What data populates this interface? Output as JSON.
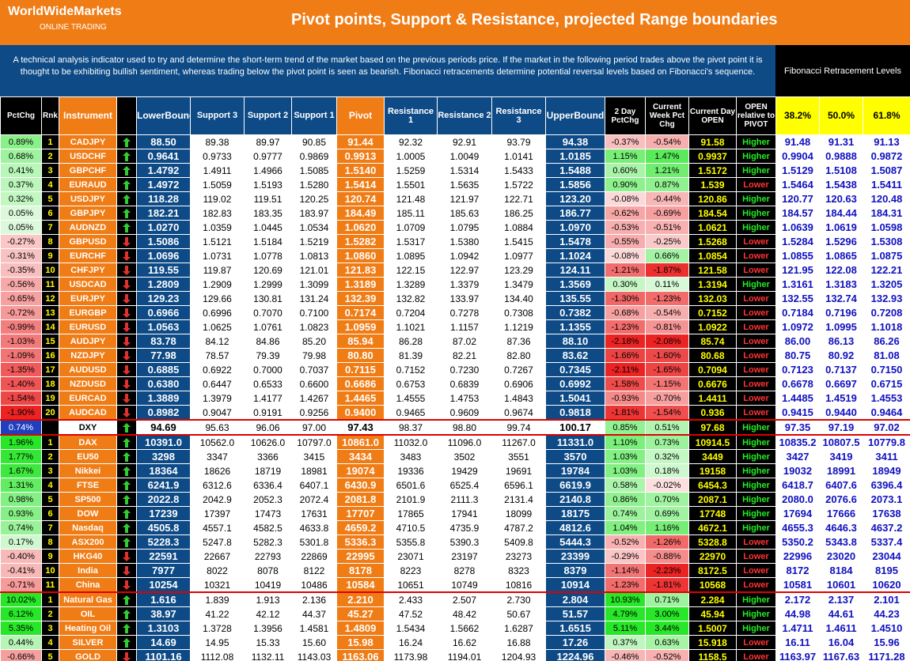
{
  "header": {
    "brand": "WorldWideMarkets",
    "sub": "ONLINE TRADING",
    "title": "Pivot points, Support & Resistance, projected Range boundaries",
    "description": "A technical analysis indicator used to try and determine the short-term trend of the market based on the previous periods price.  If the market in the following period trades above the pivot point it is thought to be exhibiting bullish sentiment, whereas trading below the pivot point is seen as bearish.  Fibonacci retracements determine potential reversal levels based on Fibonacci's sequence.",
    "fib_title": "Fibonacci Retracement Levels"
  },
  "table": {
    "columns": [
      "PctChg",
      "Rnk",
      "Instrument",
      "LowerBound",
      "Support 3",
      "Support 2",
      "Support 1",
      "Pivot",
      "Resistance 1",
      "Resistance 2",
      "Resistance 3",
      "UpperBound",
      "2 Day PctChg",
      "Current Week Pct Chg",
      "Current Day OPEN",
      "OPEN relative to PIVOT",
      "38.2%",
      "50.0%",
      "61.8%"
    ],
    "groups": [
      {
        "rows": [
          [
            "0.89%",
            "1",
            "CADJPY",
            "88.50",
            "89.38",
            "89.97",
            "90.85",
            "91.44",
            "92.32",
            "92.91",
            "93.79",
            "94.38",
            "-0.37%",
            "-0.54%",
            "91.58",
            "Higher",
            "91.48",
            "91.31",
            "91.13"
          ],
          [
            "0.68%",
            "2",
            "USDCHF",
            "0.9641",
            "0.9733",
            "0.9777",
            "0.9869",
            "0.9913",
            "1.0005",
            "1.0049",
            "1.0141",
            "1.0185",
            "1.15%",
            "1.47%",
            "0.9937",
            "Higher",
            "0.9904",
            "0.9888",
            "0.9872"
          ],
          [
            "0.41%",
            "3",
            "GBPCHF",
            "1.4792",
            "1.4911",
            "1.4966",
            "1.5085",
            "1.5140",
            "1.5259",
            "1.5314",
            "1.5433",
            "1.5488",
            "0.60%",
            "1.21%",
            "1.5172",
            "Higher",
            "1.5129",
            "1.5108",
            "1.5087"
          ],
          [
            "0.37%",
            "4",
            "EURAUD",
            "1.4972",
            "1.5059",
            "1.5193",
            "1.5280",
            "1.5414",
            "1.5501",
            "1.5635",
            "1.5722",
            "1.5856",
            "0.90%",
            "0.87%",
            "1.539",
            "Lower",
            "1.5464",
            "1.5438",
            "1.5411"
          ],
          [
            "0.32%",
            "5",
            "USDJPY",
            "118.28",
            "119.02",
            "119.51",
            "120.25",
            "120.74",
            "121.48",
            "121.97",
            "122.71",
            "123.20",
            "-0.08%",
            "-0.44%",
            "120.86",
            "Higher",
            "120.77",
            "120.63",
            "120.48"
          ],
          [
            "0.05%",
            "6",
            "GBPJPY",
            "182.21",
            "182.83",
            "183.35",
            "183.97",
            "184.49",
            "185.11",
            "185.63",
            "186.25",
            "186.77",
            "-0.62%",
            "-0.69%",
            "184.54",
            "Higher",
            "184.57",
            "184.44",
            "184.31"
          ],
          [
            "0.05%",
            "7",
            "AUDNZD",
            "1.0270",
            "1.0359",
            "1.0445",
            "1.0534",
            "1.0620",
            "1.0709",
            "1.0795",
            "1.0884",
            "1.0970",
            "-0.53%",
            "-0.51%",
            "1.0621",
            "Higher",
            "1.0639",
            "1.0619",
            "1.0598"
          ],
          [
            "-0.27%",
            "8",
            "GBPUSD",
            "1.5086",
            "1.5121",
            "1.5184",
            "1.5219",
            "1.5282",
            "1.5317",
            "1.5380",
            "1.5415",
            "1.5478",
            "-0.55%",
            "-0.25%",
            "1.5268",
            "Lower",
            "1.5284",
            "1.5296",
            "1.5308"
          ],
          [
            "-0.31%",
            "9",
            "EURCHF",
            "1.0696",
            "1.0731",
            "1.0778",
            "1.0813",
            "1.0860",
            "1.0895",
            "1.0942",
            "1.0977",
            "1.1024",
            "-0.08%",
            "0.66%",
            "1.0854",
            "Lower",
            "1.0855",
            "1.0865",
            "1.0875"
          ],
          [
            "-0.35%",
            "10",
            "CHFJPY",
            "119.55",
            "119.87",
            "120.69",
            "121.01",
            "121.83",
            "122.15",
            "122.97",
            "123.29",
            "124.11",
            "-1.21%",
            "-1.87%",
            "121.58",
            "Lower",
            "121.95",
            "122.08",
            "122.21"
          ],
          [
            "-0.56%",
            "11",
            "USDCAD",
            "1.2809",
            "1.2909",
            "1.2999",
            "1.3099",
            "1.3189",
            "1.3289",
            "1.3379",
            "1.3479",
            "1.3569",
            "0.30%",
            "0.11%",
            "1.3194",
            "Higher",
            "1.3161",
            "1.3183",
            "1.3205"
          ],
          [
            "-0.65%",
            "12",
            "EURJPY",
            "129.23",
            "129.66",
            "130.81",
            "131.24",
            "132.39",
            "132.82",
            "133.97",
            "134.40",
            "135.55",
            "-1.30%",
            "-1.23%",
            "132.03",
            "Lower",
            "132.55",
            "132.74",
            "132.93"
          ],
          [
            "-0.72%",
            "13",
            "EURGBP",
            "0.6966",
            "0.6996",
            "0.7070",
            "0.7100",
            "0.7174",
            "0.7204",
            "0.7278",
            "0.7308",
            "0.7382",
            "-0.68%",
            "-0.54%",
            "0.7152",
            "Lower",
            "0.7184",
            "0.7196",
            "0.7208"
          ],
          [
            "-0.99%",
            "14",
            "EURUSD",
            "1.0563",
            "1.0625",
            "1.0761",
            "1.0823",
            "1.0959",
            "1.1021",
            "1.1157",
            "1.1219",
            "1.1355",
            "-1.23%",
            "-0.81%",
            "1.0922",
            "Lower",
            "1.0972",
            "1.0995",
            "1.1018"
          ],
          [
            "-1.03%",
            "15",
            "AUDJPY",
            "83.78",
            "84.12",
            "84.86",
            "85.20",
            "85.94",
            "86.28",
            "87.02",
            "87.36",
            "88.10",
            "-2.18%",
            "-2.08%",
            "85.74",
            "Lower",
            "86.00",
            "86.13",
            "86.26"
          ],
          [
            "-1.09%",
            "16",
            "NZDJPY",
            "77.98",
            "78.57",
            "79.39",
            "79.98",
            "80.80",
            "81.39",
            "82.21",
            "82.80",
            "83.62",
            "-1.66%",
            "-1.60%",
            "80.68",
            "Lower",
            "80.75",
            "80.92",
            "81.08"
          ],
          [
            "-1.35%",
            "17",
            "AUDUSD",
            "0.6885",
            "0.6922",
            "0.7000",
            "0.7037",
            "0.7115",
            "0.7152",
            "0.7230",
            "0.7267",
            "0.7345",
            "-2.11%",
            "-1.65%",
            "0.7094",
            "Lower",
            "0.7123",
            "0.7137",
            "0.7150"
          ],
          [
            "-1.40%",
            "18",
            "NZDUSD",
            "0.6380",
            "0.6447",
            "0.6533",
            "0.6600",
            "0.6686",
            "0.6753",
            "0.6839",
            "0.6906",
            "0.6992",
            "-1.58%",
            "-1.15%",
            "0.6676",
            "Lower",
            "0.6678",
            "0.6697",
            "0.6715"
          ],
          [
            "-1.54%",
            "19",
            "EURCAD",
            "1.3889",
            "1.3979",
            "1.4177",
            "1.4267",
            "1.4465",
            "1.4555",
            "1.4753",
            "1.4843",
            "1.5041",
            "-0.93%",
            "-0.70%",
            "1.4411",
            "Lower",
            "1.4485",
            "1.4519",
            "1.4553"
          ],
          [
            "-1.90%",
            "20",
            "AUDCAD",
            "0.8982",
            "0.9047",
            "0.9191",
            "0.9256",
            "0.9400",
            "0.9465",
            "0.9609",
            "0.9674",
            "0.9818",
            "-1.81%",
            "-1.54%",
            "0.936",
            "Lower",
            "0.9415",
            "0.9440",
            "0.9464"
          ]
        ]
      },
      {
        "rows": [
          [
            "0.74%",
            null,
            "DXY",
            "94.69",
            "95.63",
            "96.06",
            "97.00",
            "97.43",
            "98.37",
            "98.80",
            "99.74",
            "100.17",
            "0.85%",
            "0.51%",
            "97.68",
            "Higher",
            "97.35",
            "97.19",
            "97.02"
          ]
        ]
      },
      {
        "rows": [
          [
            "1.96%",
            "1",
            "DAX",
            "10391.0",
            "10562.0",
            "10626.0",
            "10797.0",
            "10861.0",
            "11032.0",
            "11096.0",
            "11267.0",
            "11331.0",
            "1.10%",
            "0.73%",
            "10914.5",
            "Higher",
            "10835.2",
            "10807.5",
            "10779.8"
          ],
          [
            "1.77%",
            "2",
            "EU50",
            "3298",
            "3347",
            "3366",
            "3415",
            "3434",
            "3483",
            "3502",
            "3551",
            "3570",
            "1.03%",
            "0.32%",
            "3449",
            "Higher",
            "3427",
            "3419",
            "3411"
          ],
          [
            "1.67%",
            "3",
            "Nikkei",
            "18364",
            "18626",
            "18719",
            "18981",
            "19074",
            "19336",
            "19429",
            "19691",
            "19784",
            "1.03%",
            "0.18%",
            "19158",
            "Higher",
            "19032",
            "18991",
            "18949"
          ],
          [
            "1.31%",
            "4",
            "FTSE",
            "6241.9",
            "6312.6",
            "6336.4",
            "6407.1",
            "6430.9",
            "6501.6",
            "6525.4",
            "6596.1",
            "6619.9",
            "0.58%",
            "-0.02%",
            "6454.3",
            "Higher",
            "6418.7",
            "6407.6",
            "6396.4"
          ],
          [
            "0.98%",
            "5",
            "SP500",
            "2022.8",
            "2042.9",
            "2052.3",
            "2072.4",
            "2081.8",
            "2101.9",
            "2111.3",
            "2131.4",
            "2140.8",
            "0.86%",
            "0.70%",
            "2087.1",
            "Higher",
            "2080.0",
            "2076.6",
            "2073.1"
          ],
          [
            "0.93%",
            "6",
            "DOW",
            "17239",
            "17397",
            "17473",
            "17631",
            "17707",
            "17865",
            "17941",
            "18099",
            "18175",
            "0.74%",
            "0.69%",
            "17748",
            "Higher",
            "17694",
            "17666",
            "17638"
          ],
          [
            "0.74%",
            "7",
            "Nasdaq",
            "4505.8",
            "4557.1",
            "4582.5",
            "4633.8",
            "4659.2",
            "4710.5",
            "4735.9",
            "4787.2",
            "4812.6",
            "1.04%",
            "1.16%",
            "4672.1",
            "Higher",
            "4655.3",
            "4646.3",
            "4637.2"
          ],
          [
            "0.17%",
            "8",
            "ASX200",
            "5228.3",
            "5247.8",
            "5282.3",
            "5301.8",
            "5336.3",
            "5355.8",
            "5390.3",
            "5409.8",
            "5444.3",
            "-0.52%",
            "-1.26%",
            "5328.8",
            "Lower",
            "5350.2",
            "5343.8",
            "5337.4"
          ],
          [
            "-0.40%",
            "9",
            "HKG40",
            "22591",
            "22667",
            "22793",
            "22869",
            "22995",
            "23071",
            "23197",
            "23273",
            "23399",
            "-0.29%",
            "-0.88%",
            "22970",
            "Lower",
            "22996",
            "23020",
            "23044"
          ],
          [
            "-0.41%",
            "10",
            "India",
            "7977",
            "8022",
            "8078",
            "8122",
            "8178",
            "8223",
            "8278",
            "8323",
            "8379",
            "-1.14%",
            "-2.23%",
            "8172.5",
            "Lower",
            "8172",
            "8184",
            "8195"
          ],
          [
            "-0.71%",
            "11",
            "China",
            "10254",
            "10321",
            "10419",
            "10486",
            "10584",
            "10651",
            "10749",
            "10816",
            "10914",
            "-1.23%",
            "-1.81%",
            "10568",
            "Lower",
            "10581",
            "10601",
            "10620"
          ]
        ]
      },
      {
        "rows": [
          [
            "10.02%",
            "1",
            "Natural Gas",
            "1.616",
            "1.839",
            "1.913",
            "2.136",
            "2.210",
            "2.433",
            "2.507",
            "2.730",
            "2.804",
            "10.93%",
            "0.71%",
            "2.284",
            "Higher",
            "2.172",
            "2.137",
            "2.101"
          ],
          [
            "6.12%",
            "2",
            "OIL",
            "38.97",
            "41.22",
            "42.12",
            "44.37",
            "45.27",
            "47.52",
            "48.42",
            "50.67",
            "51.57",
            "4.79%",
            "3.00%",
            "45.94",
            "Higher",
            "44.98",
            "44.61",
            "44.23"
          ],
          [
            "5.35%",
            "3",
            "Heating Oil",
            "1.3103",
            "1.3728",
            "1.3956",
            "1.4581",
            "1.4809",
            "1.5434",
            "1.5662",
            "1.6287",
            "1.6515",
            "5.11%",
            "3.44%",
            "1.5007",
            "Higher",
            "1.4711",
            "1.4611",
            "1.4510"
          ],
          [
            "0.44%",
            "4",
            "SILVER",
            "14.69",
            "14.95",
            "15.33",
            "15.60",
            "15.98",
            "16.24",
            "16.62",
            "16.88",
            "17.26",
            "0.37%",
            "0.63%",
            "15.918",
            "Lower",
            "16.11",
            "16.04",
            "15.96"
          ],
          [
            "-0.66%",
            "5",
            "GOLD",
            "1101.16",
            "1112.08",
            "1132.11",
            "1143.03",
            "1163.06",
            "1173.98",
            "1194.01",
            "1204.93",
            "1224.96",
            "-0.46%",
            "-0.52%",
            "1158.5",
            "Lower",
            "1163.97",
            "1167.63",
            "1171.28"
          ]
        ]
      }
    ]
  }
}
